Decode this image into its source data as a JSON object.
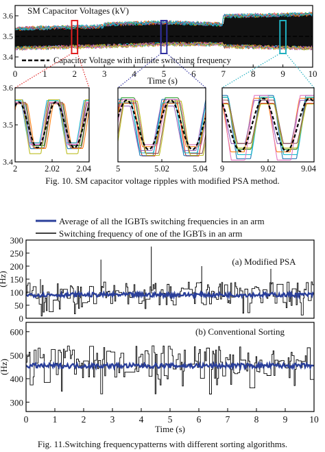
{
  "figure10": {
    "caption": "Fig. 10. SM capacitor voltage ripples with modified PSA method.",
    "chart_data": [
      {
        "type": "line",
        "title": "SM Capacitor Voltages (kV)",
        "xlabel": "Time (s)",
        "ylabel": "",
        "xlim": [
          0,
          10
        ],
        "ylim": [
          3.35,
          3.65
        ],
        "xticks": [
          "0",
          "1",
          "2",
          "3",
          "4",
          "5",
          "6",
          "7",
          "8",
          "9",
          "10"
        ],
        "yticks": [
          "3.4",
          "3.5",
          "3.6"
        ],
        "grid": false,
        "legend": "bottom-left",
        "series": [
          {
            "name": "Capacitor Voltage with infinite switching frequency",
            "style": "dashed",
            "color": "#000000"
          }
        ],
        "band": {
          "x": [
            0,
            3,
            3,
            5,
            5,
            7,
            7,
            10
          ],
          "upper": [
            3.54,
            3.55,
            3.56,
            3.57,
            3.57,
            3.56,
            3.6,
            3.61
          ],
          "lower": [
            3.44,
            3.45,
            3.45,
            3.46,
            3.46,
            3.46,
            3.45,
            3.44
          ]
        },
        "zoom_boxes": [
          {
            "x": [
              1.9,
              2.1
            ],
            "color": "#e02020"
          },
          {
            "x": [
              4.9,
              5.1
            ],
            "color": "#3030a0"
          },
          {
            "x": [
              8.9,
              9.1
            ],
            "color": "#20b0c0"
          }
        ]
      },
      {
        "type": "line",
        "title": "",
        "xlim": [
          2,
          2.04
        ],
        "ylim": [
          3.4,
          3.6
        ],
        "xticks": [
          "2",
          "2.02",
          "2.04"
        ],
        "yticks": [
          "3.4",
          "3.5",
          "3.6"
        ],
        "ripple": {
          "mean": 3.5,
          "amplitude": 0.065,
          "period": 0.02,
          "phase": 0.15,
          "trace_count": 9
        }
      },
      {
        "type": "line",
        "title": "",
        "xlim": [
          5,
          5.04
        ],
        "ylim": [
          3.4,
          3.6
        ],
        "xticks": [
          "5",
          "5.02",
          "5.04"
        ],
        "yticks": [],
        "ripple": {
          "mean": 3.5,
          "amplitude": 0.07,
          "period": 0.02,
          "phase": 0.05,
          "trace_count": 9
        }
      },
      {
        "type": "line",
        "title": "",
        "xlim": [
          9,
          9.04
        ],
        "ylim": [
          3.4,
          3.6
        ],
        "xticks": [
          "9",
          "9.02",
          "9.04"
        ],
        "yticks": [],
        "ripple": {
          "mean": 3.5,
          "amplitude": 0.075,
          "period": 0.02,
          "phase": 0.35,
          "trace_count": 9
        }
      }
    ]
  },
  "figure11": {
    "caption": "Fig. 11.Switching frequencypatterns with different sorting algorithms.",
    "legend": [
      {
        "label": "Average of all the IGBTs switching frequencies in an arm",
        "color": "#2a3f9a"
      },
      {
        "label": "Switching frequency of one of the IGBTs in an arm",
        "color": "#000000"
      }
    ],
    "chart_data": [
      {
        "type": "line",
        "title": "(a) Modified PSA",
        "xlabel": "",
        "ylabel": "(Hz)",
        "xlim": [
          0,
          10
        ],
        "ylim": [
          0,
          300
        ],
        "yticks": [
          "0",
          "50",
          "100",
          "150",
          "200",
          "250",
          "300"
        ],
        "grid": false,
        "series": [
          {
            "name": "Average of all the IGBTs switching frequencies in an arm",
            "mean": 90,
            "spread": 8
          },
          {
            "name": "Switching frequency of one of the IGBTs in an arm",
            "mean": 95,
            "spread": 45,
            "peaks": [
              {
                "x": 2.6,
                "y": 225
              },
              {
                "x": 4.35,
                "y": 275
              },
              {
                "x": 6.1,
                "y": 200
              },
              {
                "x": 8.5,
                "y": 215
              },
              {
                "x": 0.5,
                "y": 150
              }
            ]
          }
        ]
      },
      {
        "type": "line",
        "title": "(b) Conventional Sorting",
        "xlabel": "Time (s)",
        "ylabel": "(Hz)",
        "xlim": [
          0,
          10
        ],
        "ylim": [
          260,
          640
        ],
        "xticks": [
          "0",
          "1",
          "2",
          "3",
          "4",
          "5",
          "6",
          "7",
          "8",
          "9",
          "10"
        ],
        "yticks": [
          "300",
          "400",
          "500",
          "600"
        ],
        "grid": false,
        "series": [
          {
            "name": "Average of all the IGBTs switching frequencies in an arm",
            "mean": 455,
            "spread": 10
          },
          {
            "name": "Switching frequency of one of the IGBTs in an arm",
            "mean": 470,
            "spread": 70
          }
        ]
      }
    ]
  }
}
